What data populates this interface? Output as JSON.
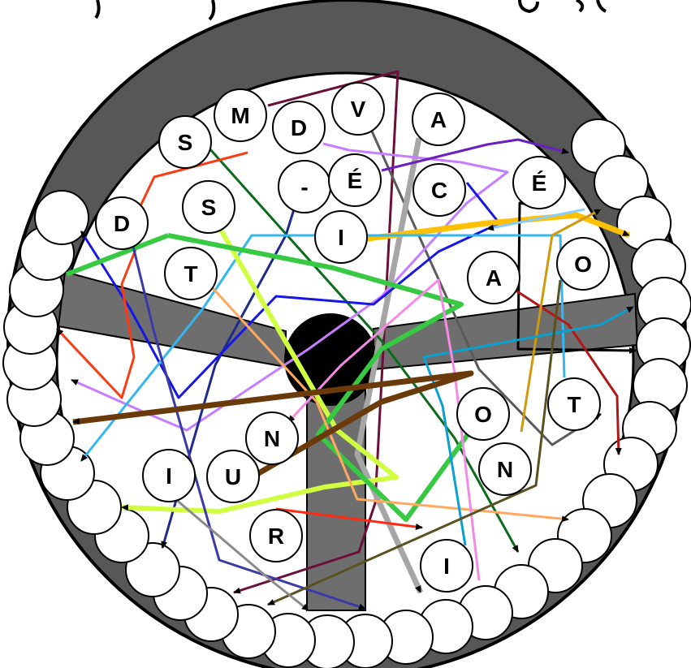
{
  "puzzle": {
    "letters": [
      "M",
      "V",
      "A",
      "S",
      "D",
      "-",
      "É",
      "C",
      "É",
      "S",
      "D",
      "I",
      "T",
      "A",
      "O",
      "N",
      "U",
      "I",
      "O",
      "T",
      "N",
      "R",
      "I"
    ]
  },
  "colors": {
    "rim": "#575757",
    "bars": "#6e6e6e",
    "hub": "#000000",
    "circle_fill": "#ffffff",
    "circle_stroke": "#000000"
  },
  "lines": [
    {
      "color": "#6b0f3a"
    },
    {
      "color": "#5a5a5a"
    },
    {
      "color": "#a6a6a6"
    },
    {
      "color": "#0b6b1a"
    },
    {
      "color": "#c77dff"
    },
    {
      "color": "#6a1fbf"
    },
    {
      "color": "#1e2a8c"
    },
    {
      "color": "#1616e6"
    },
    {
      "color": "#ffc000"
    },
    {
      "color": "#000000"
    },
    {
      "color": "#33b7f0"
    },
    {
      "color": "#fa3c14"
    },
    {
      "color": "#cfff40"
    },
    {
      "color": "#38c943"
    },
    {
      "color": "#ffa860"
    },
    {
      "color": "#3a3aa6"
    },
    {
      "color": "#b01818"
    },
    {
      "color": "#d09a10"
    },
    {
      "color": "#0aa0d0"
    },
    {
      "color": "#f38ae6"
    },
    {
      "color": "#6b3a0a"
    },
    {
      "color": "#5a5020"
    },
    {
      "color": "#ff2a10"
    },
    {
      "color": "#8a8a8a"
    },
    {
      "color": "#88ccff"
    }
  ]
}
